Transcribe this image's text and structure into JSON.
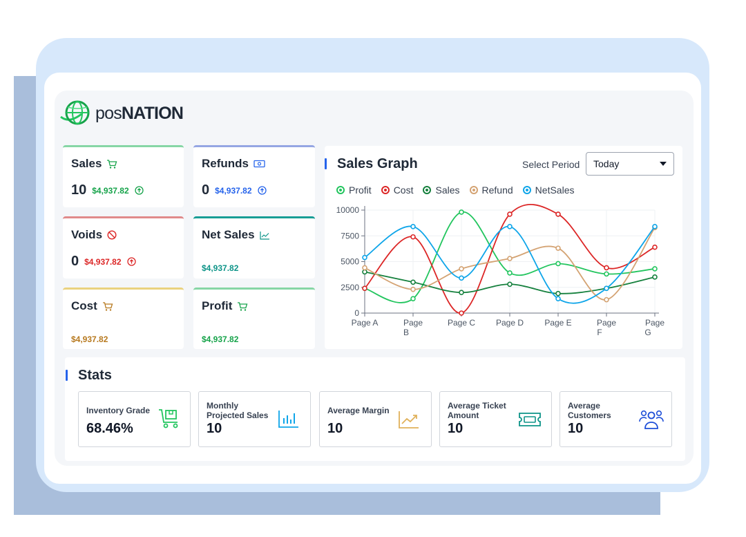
{
  "brand": {
    "name_prefix": "pos",
    "name_suffix": "NATION"
  },
  "cards": [
    {
      "title": "Sales",
      "icon": "cart-icon",
      "count": "10",
      "amount": "$4,937.82",
      "trend": "up",
      "color": "#16a34a",
      "accent": "#86d6a5"
    },
    {
      "title": "Refunds",
      "icon": "cash-icon",
      "count": "0",
      "amount": "$4,937.82",
      "trend": "up",
      "color": "#2563eb",
      "accent": "#95a6e3"
    },
    {
      "title": "Voids",
      "icon": "ban-icon",
      "count": "0",
      "amount": "$4,937.82",
      "trend": "up",
      "color": "#dc2626",
      "accent": "#e08a8a"
    },
    {
      "title": "Net Sales",
      "icon": "trend-icon",
      "amount": "$4,937.82",
      "color": "#0d9488",
      "accent": "#179d95"
    },
    {
      "title": "Cost",
      "icon": "cart-icon",
      "amount": "$4,937.82",
      "color": "#b7791f",
      "accent": "#ead27e"
    },
    {
      "title": "Profit",
      "icon": "cart-icon",
      "amount": "$4,937.82",
      "color": "#16a34a",
      "accent": "#86d6a5"
    }
  ],
  "graph": {
    "title": "Sales Graph",
    "period_label": "Select Period",
    "period_value": "Today"
  },
  "chart_data": {
    "type": "line",
    "categories": [
      "Page A",
      "Page B",
      "Page C",
      "Page D",
      "Page E",
      "Page F",
      "Page G"
    ],
    "tick_lines": [
      [
        "Page A"
      ],
      [
        "Page",
        "B"
      ],
      [
        "Page C"
      ],
      [
        "Page D"
      ],
      [
        "Page E"
      ],
      [
        "Page",
        "F"
      ],
      [
        "Page",
        "G"
      ]
    ],
    "ylim": [
      0,
      10000
    ],
    "yticks": [
      0,
      2500,
      5000,
      7500,
      10000
    ],
    "series": [
      {
        "name": "Profit",
        "color": "#22c55e",
        "values": [
          2400,
          1400,
          9800,
          3900,
          4800,
          3800,
          4300
        ]
      },
      {
        "name": "Cost",
        "color": "#dc2626",
        "values": [
          2400,
          7400,
          0,
          9600,
          9600,
          4400,
          6400
        ]
      },
      {
        "name": "Sales",
        "color": "#15803d",
        "values": [
          4000,
          3000,
          2000,
          2800,
          1900,
          2400,
          3500
        ]
      },
      {
        "name": "Refund",
        "color": "#d4a373",
        "values": [
          4400,
          2300,
          4300,
          5300,
          6300,
          1300,
          8300
        ]
      },
      {
        "name": "NetSales",
        "color": "#0ea5e9",
        "values": [
          5400,
          8400,
          3400,
          8400,
          1400,
          2400,
          8400
        ]
      }
    ]
  },
  "stats": {
    "title": "Stats",
    "items": [
      {
        "label": "Inventory Grade",
        "value": "68.46%",
        "icon": "cart-box-icon"
      },
      {
        "label": "Monthly Projected Sales",
        "value": "10",
        "icon": "bar-chart-icon"
      },
      {
        "label": "Average Margin",
        "value": "10",
        "icon": "trend-chart-icon"
      },
      {
        "label": "Average Ticket Amount",
        "value": "10",
        "icon": "ticket-icon"
      },
      {
        "label": "Average Customers",
        "value": "10",
        "icon": "users-icon"
      }
    ]
  }
}
